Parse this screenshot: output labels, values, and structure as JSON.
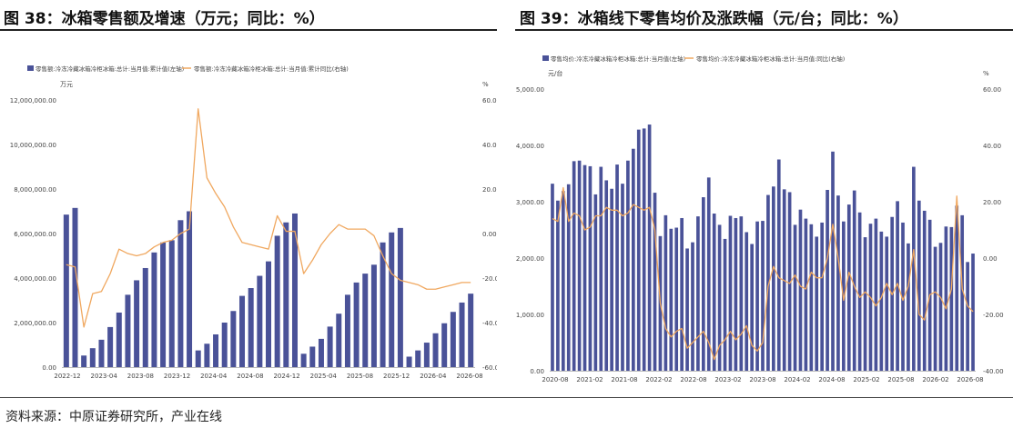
{
  "figures": [
    {
      "title": "图 38：冰箱零售额及增速（万元；同比：%）"
    },
    {
      "title": "图 39：冰箱线下零售均价及涨跌幅（元/台；同比：%）"
    }
  ],
  "source": "资料来源：中原证券研究所，产业在线",
  "colors": {
    "bar": "#4a5298",
    "line": "#f0a860",
    "axis": "#bbbbbb",
    "text": "#444444"
  },
  "chart_data": [
    {
      "type": "bar",
      "legend_position": "top-left",
      "grid": false,
      "series": [
        {
          "name": "零售额:冷冻冷藏冰箱冷柜冰箱:总计:当月值:累计值(左轴)",
          "axis": "left",
          "type": "bar",
          "values": [
            6850000,
            7150000,
            520000,
            850000,
            1230000,
            1800000,
            2450000,
            3250000,
            3900000,
            4450000,
            5150000,
            5600000,
            5700000,
            6600000,
            7000000,
            750000,
            1050000,
            1470000,
            2000000,
            2520000,
            3200000,
            3550000,
            4100000,
            4750000,
            5900000,
            6500000,
            6900000,
            600000,
            920000,
            1270000,
            1820000,
            2400000,
            3250000,
            3800000,
            4200000,
            4600000,
            5600000,
            6050000,
            6250000,
            470000,
            750000,
            1100000,
            1520000,
            1970000,
            2480000,
            2900000,
            3300000
          ]
        },
        {
          "name": "零售额:冷冻冷藏冰箱冷柜冰箱:总计:当月值:累计同比(右轴)",
          "axis": "right",
          "type": "line",
          "values": [
            -14,
            -15,
            -42,
            -27,
            -26,
            -18,
            -7,
            -9,
            -10,
            -9,
            -6,
            -4,
            -3,
            0,
            2,
            56,
            25,
            18,
            12,
            3,
            -4,
            -5,
            -6,
            -7,
            8,
            1,
            1,
            -18,
            -12,
            -5,
            0,
            4,
            2,
            2,
            2,
            -1,
            -10,
            -18,
            -21,
            -22,
            -23,
            -25,
            -25,
            -24,
            -23,
            -22,
            -22
          ]
        }
      ],
      "x_ticks": [
        "2022-12",
        "2023-04",
        "2023-08",
        "2023-12",
        "2024-04",
        "2024-08",
        "2024-12",
        "2025-04",
        "2025-08",
        "2025-12",
        "2026-04",
        "2026-08"
      ],
      "y_left": {
        "unit": "万元",
        "range": [
          0,
          12000000
        ],
        "ticks": [
          "0.00",
          "2,000,000.00",
          "4,000,000.00",
          "6,000,000.00",
          "8,000,000.00",
          "10,000,000.00",
          "12,000,000.00"
        ]
      },
      "y_right": {
        "unit": "%",
        "range": [
          -60,
          60
        ],
        "ticks": [
          "-60.00",
          "-40.00",
          "-20.00",
          "0.00",
          "20.00",
          "40.00",
          "60.00"
        ]
      }
    },
    {
      "type": "bar",
      "legend_position": "top-left",
      "grid": false,
      "series": [
        {
          "name": "零售均价:冷冻冷藏冰箱冷柜冰箱:总计:当月值(左轴)",
          "axis": "left",
          "type": "bar",
          "values": [
            3320,
            3020,
            3190,
            3310,
            3720,
            3730,
            3650,
            3630,
            3130,
            3620,
            3380,
            3230,
            3660,
            3320,
            3730,
            3940,
            4280,
            4300,
            4370,
            3160,
            2390,
            2760,
            2520,
            2540,
            2710,
            2170,
            2280,
            2740,
            3080,
            3430,
            2790,
            2590,
            2340,
            2750,
            2710,
            2740,
            2460,
            2250,
            2650,
            2660,
            3120,
            3270,
            3750,
            3220,
            3170,
            2590,
            2860,
            2700,
            2600,
            2380,
            2630,
            3210,
            3890,
            3110,
            2650,
            2950,
            3200,
            2810,
            2370,
            2610,
            2700,
            2470,
            2380,
            2730,
            3010,
            2630,
            2260,
            3620,
            3020,
            2840,
            2680,
            2200,
            2270,
            2560,
            2550,
            2930,
            2760,
            1930,
            2080
          ]
        },
        {
          "name": "零售均价:冷冻冷藏冰箱冷柜冰箱:总计:当月值:同比(右轴)",
          "axis": "right",
          "type": "line",
          "values": [
            14,
            13,
            25,
            13,
            16,
            15,
            10,
            11,
            15,
            15,
            18,
            17,
            17,
            15,
            16,
            19,
            18,
            17,
            18,
            10,
            -16,
            -25,
            -28,
            -26,
            -25,
            -32,
            -30,
            -28,
            -26,
            -30,
            -36,
            -31,
            -29,
            -26,
            -29,
            -27,
            -24,
            -31,
            -33,
            -30,
            -10,
            -3,
            -7,
            -8,
            -9,
            -6,
            -10,
            -11,
            -5,
            -7,
            -7,
            0,
            12,
            0,
            -15,
            -5,
            -10,
            -14,
            -12,
            -14,
            -17,
            -14,
            -9,
            -13,
            -9,
            -15,
            -10,
            3,
            -20,
            -22,
            -13,
            -12,
            -14,
            -18,
            -11,
            22,
            -11,
            -17,
            -19
          ]
        }
      ],
      "x_ticks": [
        "2020-08",
        "2021-02",
        "2021-08",
        "2022-02",
        "2022-08",
        "2023-02",
        "2023-08",
        "2024-02",
        "2024-08",
        "2025-02",
        "2025-08",
        "2026-02",
        "2026-08"
      ],
      "y_left": {
        "unit": "元/台",
        "range": [
          0,
          5000
        ],
        "ticks": [
          "0.00",
          "1,000.00",
          "2,000.00",
          "3,000.00",
          "4,000.00",
          "5,000.00"
        ]
      },
      "y_right": {
        "unit": "%",
        "range": [
          -40,
          60
        ],
        "ticks": [
          "-40.00",
          "-20.00",
          "0.00",
          "20.00",
          "40.00",
          "60.00"
        ]
      }
    }
  ]
}
